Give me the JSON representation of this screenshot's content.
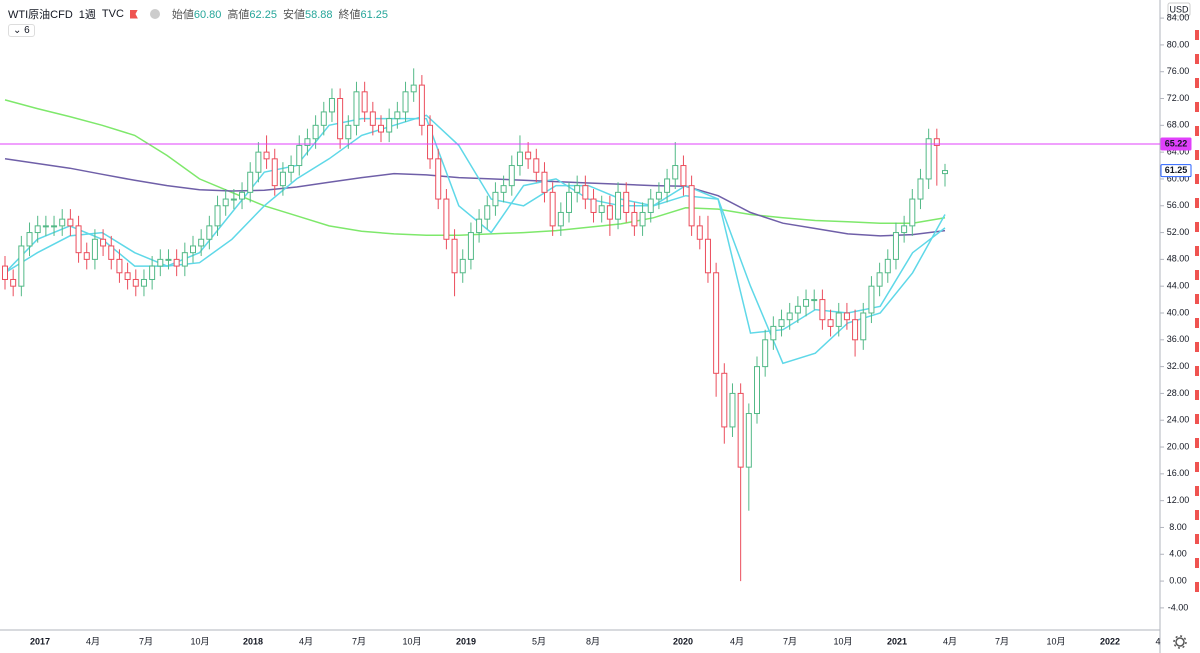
{
  "chart_data": {
    "type": "candlestick",
    "symbol": "WTI原油CFD",
    "interval": "1週",
    "source": "TVC",
    "indicator_badge": "6",
    "currency": "USD",
    "ohlc_legend": [
      {
        "name": "始値",
        "value": 60.8,
        "label": "60.80"
      },
      {
        "name": "高値",
        "value": 62.25,
        "label": "62.25"
      },
      {
        "name": "安値",
        "value": 58.88,
        "label": "58.88"
      },
      {
        "name": "終値",
        "value": 61.25,
        "label": "61.25"
      }
    ],
    "up_color": "#53b987",
    "down_color": "#eb4d5c",
    "open": [
      47,
      45,
      44,
      50,
      52,
      53,
      53,
      53,
      54,
      53,
      49,
      48,
      51,
      50,
      48,
      46,
      45,
      44,
      45,
      47,
      48,
      48,
      47,
      49,
      50,
      51,
      53,
      56,
      57,
      57,
      58,
      61,
      64,
      63,
      59,
      61,
      62,
      65,
      66,
      68,
      70,
      72,
      66,
      68,
      73,
      70,
      68,
      67,
      69,
      70,
      73,
      74,
      68,
      63,
      57,
      51,
      46,
      48,
      52,
      54,
      56,
      58,
      59,
      62,
      64,
      63,
      61,
      58,
      53,
      55,
      58,
      59,
      57,
      55,
      56,
      54,
      58,
      55,
      53,
      55,
      57,
      58,
      60,
      62,
      59,
      53,
      51,
      46,
      31,
      23,
      28,
      17,
      25,
      32,
      36,
      38,
      39,
      40,
      41,
      42,
      42,
      39,
      38,
      40,
      39,
      36,
      40,
      44,
      46,
      48,
      52,
      53,
      57,
      60,
      66,
      60.8
    ],
    "high": [
      48.5,
      46.5,
      51.5,
      53.5,
      54.5,
      54.5,
      54.5,
      55.5,
      55.5,
      54.5,
      50.5,
      52.5,
      52.5,
      51.5,
      49.5,
      47.5,
      46.5,
      46.5,
      48.5,
      49.5,
      49.5,
      49.5,
      50.5,
      51.5,
      52.5,
      54.5,
      57.5,
      58.5,
      58.5,
      59.5,
      62.5,
      65.5,
      66.5,
      64.5,
      62.5,
      63.5,
      66.5,
      67.5,
      69.5,
      71.5,
      73.5,
      73.5,
      69.5,
      74.5,
      74.5,
      71.5,
      69.5,
      70.5,
      71.5,
      74.5,
      76.5,
      75.5,
      69.5,
      64.5,
      58.5,
      52.5,
      49.5,
      53.5,
      55.5,
      57.5,
      59.5,
      60.5,
      63.5,
      66.5,
      65.5,
      64.5,
      62.5,
      59.5,
      56.5,
      59.5,
      60.5,
      60.5,
      58.5,
      57.5,
      57.5,
      59.5,
      59.5,
      56.5,
      56.5,
      58.5,
      59.5,
      61.5,
      65.5,
      63.5,
      60.5,
      54.5,
      54.5,
      47.5,
      32.5,
      29.5,
      29.5,
      26.5,
      33.5,
      37.5,
      39.5,
      40.5,
      41.5,
      42.5,
      43.5,
      43.5,
      43.5,
      40.5,
      41.5,
      41.5,
      40.5,
      41.5,
      45.5,
      47.5,
      49.5,
      53.5,
      54.5,
      58.5,
      61.5,
      67.5,
      67.5,
      62.25
    ],
    "low": [
      43.5,
      42.5,
      42.5,
      48.5,
      50.5,
      51.5,
      51.5,
      51.5,
      51.5,
      47.5,
      46.5,
      46.5,
      48.5,
      46.5,
      44.5,
      43.5,
      42.5,
      42.5,
      43.5,
      45.5,
      46.5,
      45.5,
      45.5,
      47.5,
      48.5,
      49.5,
      51.5,
      54.5,
      55.5,
      55.5,
      56.5,
      59.5,
      61.5,
      57.5,
      57.5,
      59.5,
      60.5,
      63.5,
      64.5,
      66.5,
      68.5,
      64.5,
      64.5,
      66.5,
      68.5,
      66.5,
      65.5,
      65.5,
      67.5,
      68.5,
      71.5,
      66.5,
      61.5,
      55.5,
      49.5,
      42.5,
      44.5,
      46.5,
      50.5,
      52.5,
      54.5,
      56.5,
      57.5,
      60.5,
      61.5,
      59.5,
      56.5,
      51.5,
      51.5,
      53.5,
      56.5,
      55.5,
      53.5,
      53.5,
      51.5,
      52.5,
      53.5,
      51.5,
      51.5,
      53.5,
      55.5,
      56.5,
      58.5,
      57.5,
      51.5,
      49.5,
      44.5,
      27.5,
      20.5,
      21.5,
      0,
      10.5,
      23.5,
      30.5,
      34.5,
      36.5,
      37.5,
      38.5,
      39.5,
      40.5,
      37.5,
      36.5,
      36.5,
      37.5,
      33.5,
      34.5,
      38.5,
      42.5,
      44.5,
      46.5,
      50.5,
      51.5,
      55.5,
      58.5,
      59,
      58.88
    ],
    "close": [
      45,
      44,
      50,
      52,
      53,
      53,
      53,
      54,
      53,
      49,
      48,
      51,
      50,
      48,
      46,
      45,
      44,
      45,
      47,
      48,
      48,
      47,
      49,
      50,
      51,
      53,
      56,
      57,
      57,
      58,
      61,
      64,
      63,
      59,
      61,
      62,
      65,
      66,
      68,
      70,
      72,
      66,
      68,
      73,
      70,
      68,
      67,
      69,
      70,
      73,
      74,
      68,
      63,
      57,
      51,
      46,
      48,
      52,
      54,
      56,
      58,
      59,
      62,
      64,
      63,
      61,
      58,
      53,
      55,
      58,
      59,
      57,
      55,
      56,
      54,
      58,
      55,
      53,
      55,
      57,
      58,
      60,
      62,
      59,
      53,
      51,
      46,
      31,
      23,
      28,
      17,
      25,
      32,
      36,
      38,
      39,
      40,
      41,
      42,
      42,
      39,
      38,
      40,
      39,
      36,
      40,
      44,
      46,
      48,
      52,
      53,
      57,
      60,
      66,
      65,
      61.25
    ],
    "lines": [
      {
        "color": "#7ee86b",
        "values": [
          71.8,
          70.5,
          69.3,
          68,
          66.5,
          63.5,
          60,
          58,
          56,
          54.5,
          53,
          52.2,
          51.8,
          51.6,
          51.6,
          51.8,
          52,
          52.3,
          52.8,
          53.3,
          54.2,
          55.7,
          55.5,
          54.7,
          54.2,
          53.8,
          53.6,
          53.4,
          53.4,
          54.2
        ]
      },
      {
        "color": "#6f5fa8",
        "values": [
          63,
          62.3,
          61.6,
          60.7,
          59.8,
          59,
          58.4,
          58.2,
          58.3,
          58.8,
          59.5,
          60.2,
          60.8,
          60.6,
          60.2,
          60,
          59.8,
          59.6,
          59.4,
          59.2,
          59,
          58.9,
          57.5,
          55,
          53.4,
          52.6,
          51.8,
          51.5,
          51.7,
          52.3
        ]
      },
      {
        "color": "#5fd8e8",
        "values": [
          46,
          51,
          53,
          51,
          47,
          47,
          49,
          55,
          61,
          62,
          68,
          69,
          69,
          69,
          56,
          52,
          59,
          60,
          57,
          56,
          56,
          59,
          57,
          37,
          37.5,
          40.5,
          40,
          41,
          49,
          52.7
        ]
      },
      {
        "color": "#5fd8e8",
        "values": [
          46,
          49,
          51.5,
          52,
          49,
          47,
          47.5,
          51,
          56,
          60,
          63,
          66.5,
          68,
          69.5,
          65,
          57,
          56,
          59,
          59,
          57,
          56,
          57.5,
          57,
          44,
          32.5,
          34,
          38.5,
          40,
          46,
          54.7
        ]
      }
    ],
    "hline": {
      "value": 65.22,
      "label": "65.22",
      "color": "#e040fb"
    },
    "last_price": {
      "value": 61.25,
      "label": "61.25"
    },
    "ylim": [
      -7.3,
      86.7
    ],
    "yticks": [
      {
        "value": -4,
        "label": "-4.00"
      },
      {
        "value": 0,
        "label": "0.00"
      },
      {
        "value": 4,
        "label": "4.00"
      },
      {
        "value": 8,
        "label": "8.00"
      },
      {
        "value": 12,
        "label": "12.00"
      },
      {
        "value": 16,
        "label": "16.00"
      },
      {
        "value": 20,
        "label": "20.00"
      },
      {
        "value": 24,
        "label": "24.00"
      },
      {
        "value": 28,
        "label": "28.00"
      },
      {
        "value": 32,
        "label": "32.00"
      },
      {
        "value": 36,
        "label": "36.00"
      },
      {
        "value": 40,
        "label": "40.00"
      },
      {
        "value": 44,
        "label": "44.00"
      },
      {
        "value": 48,
        "label": "48.00"
      },
      {
        "value": 52,
        "label": "52.00"
      },
      {
        "value": 56,
        "label": "56.00"
      },
      {
        "value": 60,
        "label": "60.00"
      },
      {
        "value": 64,
        "label": "64.00"
      },
      {
        "value": 68,
        "label": "68.00"
      },
      {
        "value": 72,
        "label": "72.00"
      },
      {
        "value": 76,
        "label": "76.00"
      },
      {
        "value": 80,
        "label": "80.00"
      },
      {
        "value": 84,
        "label": "84.00"
      }
    ],
    "time_labels": [
      "2017",
      "4月",
      "7月",
      "10月",
      "2018",
      "4月",
      "7月",
      "10月",
      "2019",
      "5月",
      "8月",
      "2020",
      "4月",
      "7月",
      "10月",
      "2021",
      "4月",
      "7月",
      "10月",
      "2022",
      "4"
    ],
    "grid": false
  }
}
